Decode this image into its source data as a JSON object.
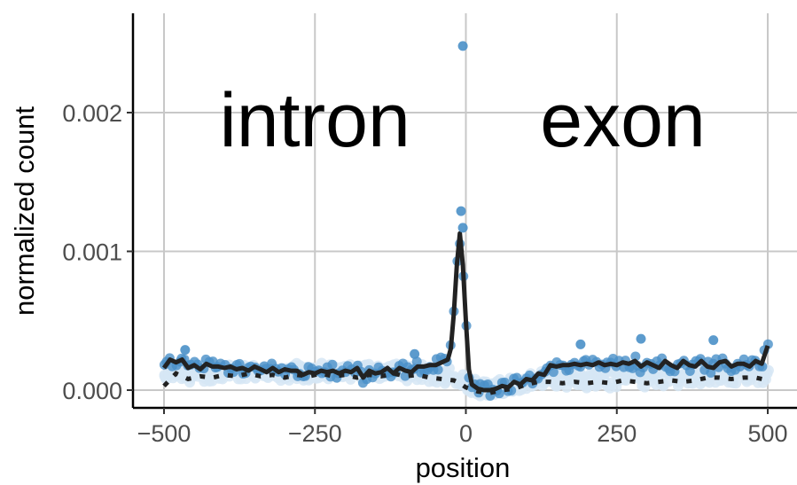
{
  "chart_data": {
    "type": "scatter",
    "title": "",
    "xlabel": "position",
    "ylabel": "normalized count",
    "xlim": [
      -520,
      520
    ],
    "ylim": [
      -0.00012,
      0.00272
    ],
    "x_ticks": [
      -500,
      -250,
      0,
      250,
      500
    ],
    "x_tick_labels": [
      "−500",
      "−250",
      "0",
      "250",
      "500"
    ],
    "y_ticks": [
      0.0,
      0.001,
      0.002
    ],
    "y_tick_labels": [
      "0.000",
      "0.001",
      "0.002"
    ],
    "grid": true,
    "annotations": [
      {
        "text": "intron",
        "x": -250,
        "y": 0.00195
      },
      {
        "text": "exon",
        "x": 260,
        "y": 0.00195
      }
    ],
    "colors": {
      "points_dark": "#4a90c8",
      "points_light": "#d6e6f5",
      "mean_line": "#222222",
      "grid": "#c8c8c8"
    },
    "series": [
      {
        "style": "solid-line",
        "x": [
          -500,
          -490,
          -480,
          -470,
          -460,
          -450,
          -440,
          -430,
          -420,
          -410,
          -400,
          -390,
          -380,
          -370,
          -360,
          -350,
          -340,
          -330,
          -320,
          -310,
          -300,
          -290,
          -280,
          -270,
          -260,
          -250,
          -240,
          -230,
          -220,
          -210,
          -200,
          -190,
          -180,
          -170,
          -160,
          -150,
          -140,
          -130,
          -120,
          -110,
          -100,
          -90,
          -80,
          -70,
          -60,
          -50,
          -40,
          -30,
          -25,
          -20,
          -15,
          -10,
          -5,
          0,
          5,
          10,
          20,
          30,
          40,
          50,
          60,
          70,
          80,
          90,
          100,
          110,
          120,
          130,
          140,
          150,
          160,
          170,
          180,
          190,
          200,
          210,
          220,
          230,
          240,
          250,
          260,
          270,
          280,
          290,
          300,
          310,
          320,
          330,
          340,
          350,
          360,
          370,
          380,
          390,
          400,
          410,
          420,
          430,
          440,
          450,
          460,
          470,
          480,
          490,
          500
        ],
        "y": [
          0.00016,
          0.00022,
          0.0002,
          0.00022,
          0.00016,
          0.00018,
          0.00015,
          0.00019,
          0.00017,
          0.00017,
          0.00016,
          0.00017,
          0.00015,
          0.00016,
          0.00014,
          0.00017,
          0.00015,
          0.00013,
          0.00016,
          0.00013,
          0.00015,
          0.00014,
          0.00014,
          0.00011,
          0.00013,
          0.00012,
          0.00014,
          0.00013,
          0.00014,
          0.00012,
          0.00014,
          0.00013,
          0.00016,
          9e-05,
          0.00014,
          0.00012,
          0.00013,
          0.00016,
          0.00012,
          0.00016,
          0.00014,
          0.00013,
          0.00017,
          0.00017,
          0.00018,
          0.00018,
          0.0002,
          0.00022,
          0.0003,
          0.00055,
          0.0009,
          0.00113,
          0.0009,
          0.0005,
          0.00015,
          4e-05,
          1e-05,
          0.0,
          0.0,
          1e-05,
          3e-05,
          2e-05,
          6e-05,
          4e-05,
          8e-05,
          7e-05,
          0.00012,
          0.00011,
          0.00018,
          0.00017,
          0.00018,
          0.00018,
          0.00019,
          0.00018,
          0.00019,
          0.00018,
          0.0002,
          0.00018,
          0.00019,
          0.00018,
          0.0002,
          0.00019,
          0.00021,
          0.00017,
          0.0002,
          0.00018,
          0.00016,
          0.00021,
          0.00018,
          0.00016,
          0.00021,
          0.00018,
          0.00017,
          0.00021,
          0.00017,
          0.00016,
          0.0002,
          0.00021,
          0.00017,
          0.00019,
          0.00019,
          0.00017,
          0.00021,
          0.00019,
          0.00032
        ]
      },
      {
        "style": "dotted-line",
        "x": [
          -500,
          -480,
          -460,
          -440,
          -420,
          -400,
          -380,
          -360,
          -340,
          -320,
          -300,
          -280,
          -260,
          -240,
          -220,
          -200,
          -180,
          -160,
          -140,
          -120,
          -100,
          -80,
          -60,
          -40,
          -20,
          -10,
          0,
          20,
          40,
          60,
          80,
          100,
          120,
          140,
          160,
          180,
          200,
          220,
          240,
          260,
          280,
          300,
          320,
          340,
          360,
          380,
          400,
          420,
          440,
          460,
          480,
          500
        ],
        "y": [
          3e-05,
          0.00012,
          8e-05,
          0.0001,
          9e-05,
          0.00011,
          0.0001,
          0.00012,
          0.0001,
          0.00011,
          9e-05,
          0.00011,
          0.0001,
          0.00012,
          0.0001,
          0.00011,
          9e-05,
          0.00011,
          0.0001,
          0.00012,
          0.0001,
          0.00011,
          9e-05,
          8e-05,
          7e-05,
          5e-05,
          2e-05,
          -1e-05,
          -2e-05,
          0.0,
          1e-05,
          4e-05,
          6e-05,
          6e-05,
          5e-05,
          6e-05,
          5e-05,
          6e-05,
          5e-05,
          7e-05,
          6e-05,
          5e-05,
          6e-05,
          7e-05,
          6e-05,
          7e-05,
          9e-05,
          9e-05,
          8e-05,
          9e-05,
          9e-05,
          7e-05
        ]
      }
    ],
    "highlight_points": [
      {
        "x": -5,
        "y": 0.00248
      },
      {
        "x": -8,
        "y": 0.00129
      },
      {
        "x": -5,
        "y": 0.00117
      },
      {
        "x": 190,
        "y": 0.00033
      },
      {
        "x": 290,
        "y": 0.00037
      },
      {
        "x": 410,
        "y": 0.00036
      },
      {
        "x": -465,
        "y": 0.00029
      },
      {
        "x": -85,
        "y": 0.00026
      }
    ]
  }
}
